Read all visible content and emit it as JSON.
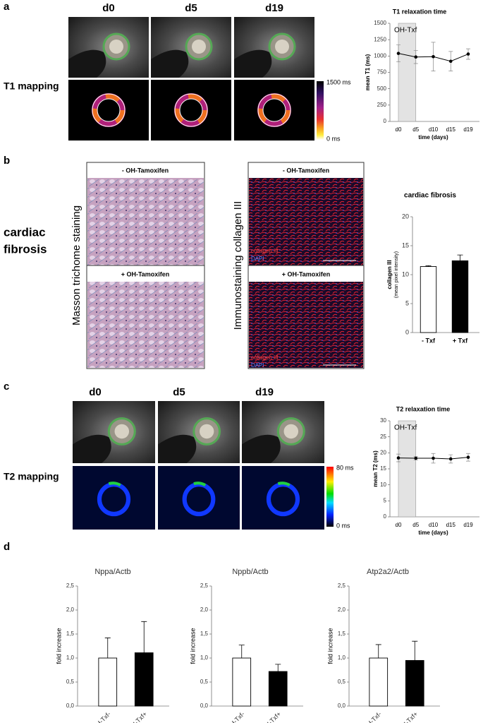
{
  "panels": {
    "a": {
      "label": "a",
      "headers": [
        "d0",
        "d5",
        "d19"
      ],
      "row_label": "T1 mapping",
      "colorbar": [
        "1500 ms",
        "0 ms"
      ]
    },
    "b": {
      "label": "b",
      "row_label": [
        "cardiac",
        "fibrosis"
      ],
      "masson": "Masson trichome staining",
      "immuno": "Immunostaining collagen III",
      "minus": "- OH-Tamoxifen",
      "plus": "+ OH-Tamoxifen",
      "collagen": "collagen III",
      "dapi": "DAPI"
    },
    "c": {
      "label": "c",
      "headers": [
        "d0",
        "d5",
        "d19"
      ],
      "row_label": "T2 mapping",
      "colorbar": [
        "80 ms",
        "0 ms"
      ]
    },
    "d": {
      "label": "d"
    }
  },
  "chart_data": [
    {
      "type": "line",
      "title": "T1 relaxation time",
      "categories": [
        "d0",
        "d5",
        "d10",
        "d15",
        "d19"
      ],
      "values": [
        1040,
        985,
        990,
        920,
        1030
      ],
      "errors": [
        130,
        100,
        220,
        150,
        80
      ],
      "color": "#000000",
      "ylim": [
        0,
        1500
      ],
      "yticks": [
        0,
        250,
        500,
        750,
        1000,
        1250,
        1500
      ],
      "ylabel": "mean T1 (ms)",
      "xlabel": "time (days)",
      "annotation": "OH-Txf"
    },
    {
      "type": "bar",
      "title": "cardiac fibrosis",
      "categories": [
        "- Txf",
        "+ Txf"
      ],
      "values": [
        11.4,
        12.4
      ],
      "errors": [
        0.15,
        1.0
      ],
      "colors": [
        "#ffffff",
        "#000000"
      ],
      "ylim": [
        0,
        20
      ],
      "yticks": [
        0,
        5,
        10,
        15,
        20
      ],
      "ylabel": [
        "collagen III",
        "(mean pixel intensity)"
      ]
    },
    {
      "type": "line",
      "title": "T2 relaxation time",
      "categories": [
        "d0",
        "d5",
        "d10",
        "d15",
        "d19"
      ],
      "values": [
        18.4,
        18.3,
        18.3,
        18.1,
        18.6
      ],
      "errors": [
        1.2,
        0.5,
        1.5,
        1.3,
        1.2
      ],
      "color": "#000000",
      "ylim": [
        0,
        30
      ],
      "yticks": [
        0,
        5,
        10,
        15,
        20,
        25,
        30
      ],
      "ylabel": "mean T2 (ms)",
      "xlabel": "time (days)",
      "annotation": "OH-Txf"
    },
    {
      "type": "bar",
      "title": "Nppa/Actb",
      "categories": [
        "Cre-OH-Txf-",
        "Cre+ OH-Txf+"
      ],
      "values": [
        1.0,
        1.11
      ],
      "errors": [
        0.42,
        0.65
      ],
      "colors": [
        "#ffffff",
        "#000000"
      ],
      "ylim": [
        0,
        2.5
      ],
      "yticks": [
        {
          "value": 0,
          "label": "0,0"
        },
        {
          "value": 0.5,
          "label": "0,5"
        },
        {
          "value": 1,
          "label": "1,0"
        },
        {
          "value": 1.5,
          "label": "1,5"
        },
        {
          "value": 2,
          "label": "2,0"
        },
        {
          "value": 2.5,
          "label": "2,5"
        }
      ],
      "ylabel": "fold increase"
    },
    {
      "type": "bar",
      "title": "Nppb/Actb",
      "categories": [
        "Cre-OH-Txf-",
        "Cre+ OH-Txf+"
      ],
      "values": [
        1.0,
        0.72
      ],
      "errors": [
        0.27,
        0.15
      ],
      "colors": [
        "#ffffff",
        "#000000"
      ],
      "ylim": [
        0,
        2.5
      ],
      "yticks": [
        {
          "value": 0,
          "label": "0,0"
        },
        {
          "value": 0.5,
          "label": "0,5"
        },
        {
          "value": 1,
          "label": "1,0"
        },
        {
          "value": 1.5,
          "label": "1,5"
        },
        {
          "value": 2,
          "label": "2,0"
        },
        {
          "value": 2.5,
          "label": "2,5"
        }
      ],
      "ylabel": "fold increase"
    },
    {
      "type": "bar",
      "title": "Atp2a2/Actb",
      "categories": [
        "Cre-OH-Txf-",
        "Cre+ OH-Txf+"
      ],
      "values": [
        1.0,
        0.95
      ],
      "errors": [
        0.28,
        0.4
      ],
      "colors": [
        "#ffffff",
        "#000000"
      ],
      "ylim": [
        0,
        2.5
      ],
      "yticks": [
        {
          "value": 0,
          "label": "0,0"
        },
        {
          "value": 0.5,
          "label": "0,5"
        },
        {
          "value": 1,
          "label": "1,0"
        },
        {
          "value": 1.5,
          "label": "1,5"
        },
        {
          "value": 2,
          "label": "2,0"
        },
        {
          "value": 2.5,
          "label": "2,5"
        }
      ],
      "ylabel": "fold increase"
    }
  ]
}
